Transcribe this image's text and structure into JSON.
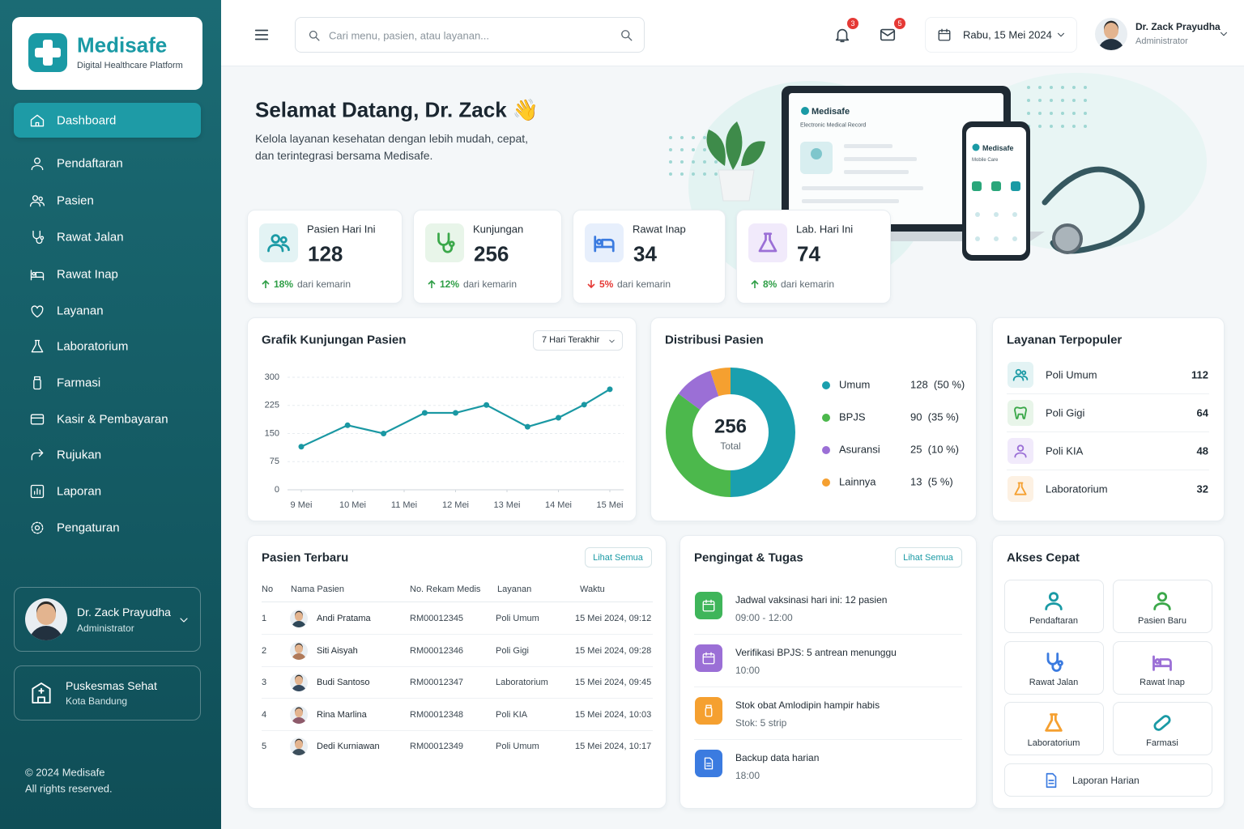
{
  "sidebar": {
    "brand": "Medisafe",
    "tagline": "Digital Healthcare Platform",
    "nav": [
      "Dashboard",
      "Pendaftaran",
      "Pasien",
      "Rawat Jalan",
      "Rawat Inap",
      "Layanan",
      "Laboratorium",
      "Farmasi",
      "Kasir & Pembayaran",
      "Rujukan",
      "Laporan",
      "Pengaturan"
    ],
    "user": {
      "name": "Dr. Zack Prayudha",
      "role": "Administrator"
    },
    "facility": {
      "name": "Puskesmas Sehat",
      "city": "Kota Bandung"
    },
    "footer": [
      "© 2024 Medisafe",
      "All rights reserved."
    ]
  },
  "header": {
    "search_placeholder": "Cari menu, pasien, atau layanan...",
    "notifications": 3,
    "messages": 5,
    "date": "Rabu, 15 Mei 2024",
    "user": {
      "name": "Dr. Zack Prayudha",
      "role": "Administrator"
    }
  },
  "hero": {
    "title": "Selamat Datang, Dr. Zack 👋",
    "subtitle_lines": [
      "Kelola layanan kesehatan dengan lebih mudah, cepat,",
      "dan terintegrasi bersama Medisafe."
    ],
    "laptop": {
      "brand": "Medisafe",
      "caption": "Electronic Medical Record"
    },
    "phone": {
      "brand": "Medisafe",
      "caption": "Mobile Care"
    }
  },
  "stats": [
    {
      "label": "Pasien Hari Ini",
      "value": 128,
      "change": "18%",
      "trend": "up",
      "note": "dari kemarin"
    },
    {
      "label": "Kunjungan",
      "value": 256,
      "change": "12%",
      "trend": "up",
      "note": "dari kemarin"
    },
    {
      "label": "Rawat Inap",
      "value": 34,
      "change": "5%",
      "trend": "down",
      "note": "dari kemarin"
    },
    {
      "label": "Lab. Hari Ini",
      "value": 74,
      "change": "8%",
      "trend": "up",
      "note": "dari kemarin"
    }
  ],
  "chart_data": [
    {
      "type": "line",
      "title": "Grafik Kunjungan Pasien",
      "filter": "7 Hari Terakhir",
      "color": "#1a98a3",
      "x": [
        9,
        9.9,
        10.6,
        11.4,
        12,
        12.6,
        13.4,
        14,
        14.5,
        15
      ],
      "values": [
        115,
        172,
        150,
        205,
        205,
        226,
        168,
        192,
        227,
        268
      ],
      "xlim": [
        9,
        15
      ],
      "xticks": [
        {
          "value": 9,
          "label": "9 Mei"
        },
        {
          "value": 10,
          "label": "10 Mei"
        },
        {
          "value": 11,
          "label": "11 Mei"
        },
        {
          "value": 12,
          "label": "12 Mei"
        },
        {
          "value": 13,
          "label": "13 Mei"
        },
        {
          "value": 14,
          "label": "14 Mei"
        },
        {
          "value": 15,
          "label": "15 Mei"
        }
      ],
      "ylim": [
        0,
        300
      ],
      "yticks": [
        0,
        75,
        150,
        225,
        300
      ],
      "grid": true
    },
    {
      "type": "pie",
      "donut": true,
      "title": "Distribusi Pasien",
      "categories": [
        "Umum",
        "BPJS",
        "Asuransi",
        "Lainnya"
      ],
      "values": [
        128,
        90,
        25,
        13
      ],
      "value_labels": [
        "128  (50 %)",
        "90  (35 %)",
        "25  (10 %)",
        "13  (5 %)"
      ],
      "colors": [
        "#1a9fae",
        "#4cb84c",
        "#9b6fd6",
        "#f5a030"
      ],
      "center_value": 256,
      "center_label": "Total"
    }
  ],
  "popular_services": {
    "title": "Layanan Terpopuler",
    "items": [
      {
        "name": "Poli Umum",
        "count": 112
      },
      {
        "name": "Poli Gigi",
        "count": 64
      },
      {
        "name": "Poli KIA",
        "count": 48
      },
      {
        "name": "Laboratorium",
        "count": 32
      }
    ]
  },
  "recent_patients": {
    "title": "Pasien Terbaru",
    "action": "Lihat Semua",
    "columns": [
      "No",
      "Nama Pasien",
      "No. Rekam Medis",
      "Layanan",
      "Waktu"
    ],
    "rows": [
      [
        1,
        "Andi Pratama",
        "RM00012345",
        "Poli Umum",
        "15 Mei 2024, 09:12"
      ],
      [
        2,
        "Siti Aisyah",
        "RM00012346",
        "Poli Gigi",
        "15 Mei 2024, 09:28"
      ],
      [
        3,
        "Budi Santoso",
        "RM00012347",
        "Laboratorium",
        "15 Mei 2024, 09:45"
      ],
      [
        4,
        "Rina Marlina",
        "RM00012348",
        "Poli KIA",
        "15 Mei 2024, 10:03"
      ],
      [
        5,
        "Dedi Kurniawan",
        "RM00012349",
        "Poli Umum",
        "15 Mei 2024, 10:17"
      ]
    ]
  },
  "reminders": {
    "title": "Pengingat & Tugas",
    "action": "Lihat Semua",
    "items": [
      {
        "title": "Jadwal vaksinasi hari ini: 12 pasien",
        "detail": "09:00 - 12:00"
      },
      {
        "title": "Verifikasi BPJS: 5 antrean menunggu",
        "detail": "10:00"
      },
      {
        "title": "Stok obat Amlodipin hampir habis",
        "detail": "Stok: 5 strip"
      },
      {
        "title": "Backup data harian",
        "detail": "18:00"
      }
    ]
  },
  "quick_access": {
    "title": "Akses Cepat",
    "items": [
      "Pendaftaran",
      "Pasien Baru",
      "Rawat Jalan",
      "Rawat Inap",
      "Laboratorium",
      "Farmasi",
      "Laporan Harian"
    ]
  }
}
